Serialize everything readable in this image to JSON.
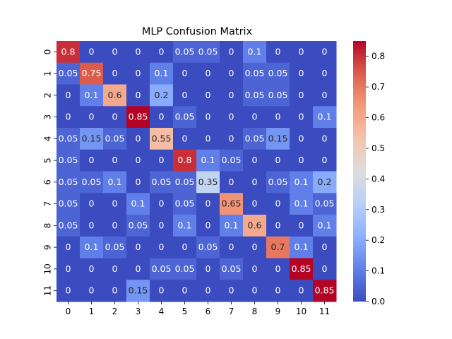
{
  "chart_data": {
    "type": "heatmap",
    "title": "MLP Confusion Matrix",
    "xlabel": "",
    "ylabel": "",
    "x_categories": [
      "0",
      "1",
      "2",
      "3",
      "4",
      "5",
      "6",
      "7",
      "8",
      "9",
      "10",
      "11"
    ],
    "y_categories": [
      "0",
      "1",
      "2",
      "3",
      "4",
      "5",
      "6",
      "7",
      "8",
      "9",
      "10",
      "11"
    ],
    "values": [
      [
        0.8,
        0,
        0,
        0,
        0,
        0.05,
        0.05,
        0,
        0.1,
        0,
        0,
        0
      ],
      [
        0.05,
        0.75,
        0,
        0,
        0.1,
        0,
        0,
        0,
        0.05,
        0.05,
        0,
        0
      ],
      [
        0,
        0.1,
        0.6,
        0,
        0.2,
        0,
        0,
        0,
        0.05,
        0.05,
        0,
        0
      ],
      [
        0,
        0,
        0,
        0.85,
        0,
        0.05,
        0,
        0,
        0,
        0,
        0,
        0.1
      ],
      [
        0.05,
        0.15,
        0.05,
        0,
        0.55,
        0,
        0,
        0,
        0.05,
        0.15,
        0,
        0
      ],
      [
        0.05,
        0,
        0,
        0,
        0,
        0.8,
        0.1,
        0.05,
        0,
        0,
        0,
        0
      ],
      [
        0.05,
        0.05,
        0.1,
        0,
        0.05,
        0.05,
        0.35,
        0,
        0,
        0.05,
        0.1,
        0.2
      ],
      [
        0.05,
        0,
        0,
        0.1,
        0,
        0.05,
        0,
        0.65,
        0,
        0,
        0.1,
        0.05
      ],
      [
        0.05,
        0,
        0,
        0.05,
        0,
        0.1,
        0,
        0.1,
        0.6,
        0,
        0,
        0.1
      ],
      [
        0,
        0.1,
        0.05,
        0,
        0,
        0,
        0.05,
        0,
        0,
        0.7,
        0.1,
        0
      ],
      [
        0,
        0,
        0,
        0,
        0.05,
        0.05,
        0,
        0.05,
        0,
        0,
        0.85,
        0
      ],
      [
        0,
        0,
        0,
        0.15,
        0,
        0,
        0,
        0,
        0,
        0,
        0,
        0.85
      ]
    ],
    "colormap": "coolwarm",
    "colorbar": {
      "min": 0,
      "max": 0.85,
      "ticks": [
        "0.0",
        "0.1",
        "0.2",
        "0.3",
        "0.4",
        "0.5",
        "0.6",
        "0.7",
        "0.8"
      ]
    },
    "annotations": true,
    "grid": false
  }
}
